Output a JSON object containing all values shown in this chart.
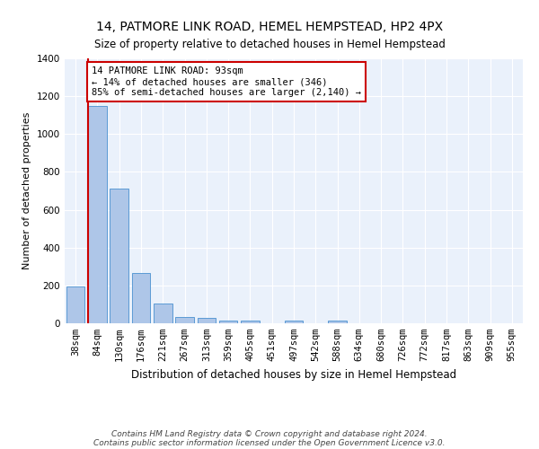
{
  "title": "14, PATMORE LINK ROAD, HEMEL HEMPSTEAD, HP2 4PX",
  "subtitle": "Size of property relative to detached houses in Hemel Hempstead",
  "xlabel": "Distribution of detached houses by size in Hemel Hempstead",
  "ylabel": "Number of detached properties",
  "footer1": "Contains HM Land Registry data © Crown copyright and database right 2024.",
  "footer2": "Contains public sector information licensed under the Open Government Licence v3.0.",
  "categories": [
    "38sqm",
    "84sqm",
    "130sqm",
    "176sqm",
    "221sqm",
    "267sqm",
    "313sqm",
    "359sqm",
    "405sqm",
    "451sqm",
    "497sqm",
    "542sqm",
    "588sqm",
    "634sqm",
    "680sqm",
    "726sqm",
    "772sqm",
    "817sqm",
    "863sqm",
    "909sqm",
    "955sqm"
  ],
  "values": [
    195,
    1150,
    710,
    265,
    105,
    35,
    27,
    13,
    12,
    0,
    14,
    0,
    14,
    0,
    0,
    0,
    0,
    0,
    0,
    0,
    0
  ],
  "bar_color": "#aec6e8",
  "bar_edge_color": "#5b9bd5",
  "property_line_color": "#cc0000",
  "annotation_text": "14 PATMORE LINK ROAD: 93sqm\n← 14% of detached houses are smaller (346)\n85% of semi-detached houses are larger (2,140) →",
  "annotation_box_color": "#cc0000",
  "ylim": [
    0,
    1400
  ],
  "yticks": [
    0,
    200,
    400,
    600,
    800,
    1000,
    1200,
    1400
  ],
  "bg_color": "#eaf1fb",
  "grid_color": "#ffffff",
  "title_fontsize": 10,
  "subtitle_fontsize": 8.5,
  "xlabel_fontsize": 8.5,
  "ylabel_fontsize": 8,
  "tick_fontsize": 7.5,
  "footer_fontsize": 6.5
}
